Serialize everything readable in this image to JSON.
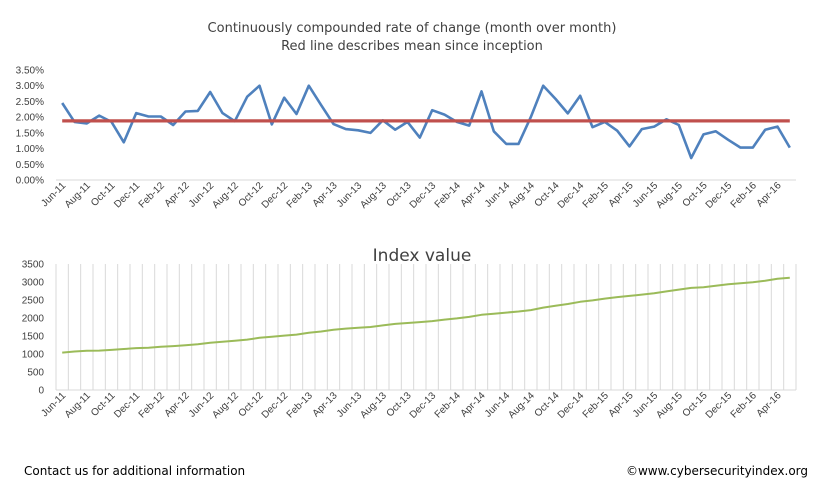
{
  "chart_data": [
    {
      "type": "line",
      "title": "Continuously compounded rate of change (month over month)",
      "subtitle": "Red line describes mean since inception",
      "xlabel": "",
      "ylabel": "",
      "ylim": [
        0,
        0.035
      ],
      "yticks": [
        "0.00%",
        "0.50%",
        "1.00%",
        "1.50%",
        "2.00%",
        "2.50%",
        "3.00%",
        "3.50%"
      ],
      "x": [
        "Jun-11",
        "Jul-11",
        "Aug-11",
        "Sep-11",
        "Oct-11",
        "Nov-11",
        "Dec-11",
        "Jan-12",
        "Feb-12",
        "Mar-12",
        "Apr-12",
        "May-12",
        "Jun-12",
        "Jul-12",
        "Aug-12",
        "Sep-12",
        "Oct-12",
        "Nov-12",
        "Dec-12",
        "Jan-13",
        "Feb-13",
        "Mar-13",
        "Apr-13",
        "May-13",
        "Jun-13",
        "Jul-13",
        "Aug-13",
        "Sep-13",
        "Oct-13",
        "Nov-13",
        "Dec-13",
        "Jan-14",
        "Feb-14",
        "Mar-14",
        "Apr-14",
        "May-14",
        "Jun-14",
        "Jul-14",
        "Aug-14",
        "Sep-14",
        "Oct-14",
        "Nov-14",
        "Dec-14",
        "Jan-15",
        "Feb-15",
        "Mar-15",
        "Apr-15",
        "May-15",
        "Jun-15",
        "Jul-15",
        "Aug-15",
        "Sep-15",
        "Oct-15",
        "Nov-15",
        "Dec-15",
        "Jan-16",
        "Feb-16",
        "Mar-16",
        "Apr-16",
        "May-16"
      ],
      "xtick_labels": [
        "Jun-11",
        "Aug-11",
        "Oct-11",
        "Dec-11",
        "Feb-12",
        "Apr-12",
        "Jun-12",
        "Aug-12",
        "Oct-12",
        "Dec-12",
        "Feb-13",
        "Apr-13",
        "Jun-13",
        "Aug-13",
        "Oct-13",
        "Dec-13",
        "Feb-14",
        "Apr-14",
        "Jun-14",
        "Aug-14",
        "Oct-14",
        "Dec-14",
        "Feb-15",
        "Apr-15",
        "Jun-15",
        "Aug-15",
        "Oct-15",
        "Dec-15",
        "Feb-16",
        "Apr-16"
      ],
      "series": [
        {
          "name": "Rate of change",
          "color": "#4f81bd",
          "values": [
            0.0245,
            0.0185,
            0.018,
            0.0205,
            0.0185,
            0.012,
            0.0213,
            0.0202,
            0.0202,
            0.0175,
            0.0218,
            0.022,
            0.028,
            0.0213,
            0.0187,
            0.0265,
            0.03,
            0.0177,
            0.0262,
            0.021,
            0.03,
            0.0238,
            0.0178,
            0.0162,
            0.0158,
            0.015,
            0.019,
            0.016,
            0.0185,
            0.0135,
            0.0222,
            0.0208,
            0.0185,
            0.0173,
            0.0282,
            0.0155,
            0.0115,
            0.0115,
            0.02,
            0.03,
            0.0258,
            0.0212,
            0.0268,
            0.0168,
            0.0185,
            0.0157,
            0.0107,
            0.0162,
            0.017,
            0.0193,
            0.0175,
            0.007,
            0.0145,
            0.0155,
            0.0128,
            0.0103,
            0.0103,
            0.016,
            0.017,
            0.0103
          ]
        },
        {
          "name": "Mean since inception",
          "color": "#c0504d",
          "values": [
            0.0188,
            0.0188,
            0.0188,
            0.0188,
            0.0188,
            0.0188,
            0.0188,
            0.0188,
            0.0188,
            0.0188,
            0.0188,
            0.0188,
            0.0188,
            0.0188,
            0.0188,
            0.0188,
            0.0188,
            0.0188,
            0.0188,
            0.0188,
            0.0188,
            0.0188,
            0.0188,
            0.0188,
            0.0188,
            0.0188,
            0.0188,
            0.0188,
            0.0188,
            0.0188,
            0.0188,
            0.0188,
            0.0188,
            0.0188,
            0.0188,
            0.0188,
            0.0188,
            0.0188,
            0.0188,
            0.0188,
            0.0188,
            0.0188,
            0.0188,
            0.0188,
            0.0188,
            0.0188,
            0.0188,
            0.0188,
            0.0188,
            0.0188,
            0.0188,
            0.0188,
            0.0188,
            0.0188,
            0.0188,
            0.0188,
            0.0188,
            0.0188,
            0.0188,
            0.0188
          ]
        }
      ],
      "grid": false,
      "legend": "none"
    },
    {
      "type": "line",
      "title": "Index value",
      "xlabel": "",
      "ylabel": "",
      "ylim": [
        0,
        3500
      ],
      "yticks": [
        "0",
        "500",
        "1000",
        "1500",
        "2000",
        "2500",
        "3000",
        "3500"
      ],
      "xtick_labels": [
        "Jun-11",
        "Aug-11",
        "Oct-11",
        "Dec-11",
        "Feb-12",
        "Apr-12",
        "Jun-12",
        "Aug-12",
        "Oct-12",
        "Dec-12",
        "Feb-13",
        "Apr-13",
        "Jun-13",
        "Aug-13",
        "Oct-13",
        "Dec-13",
        "Feb-14",
        "Apr-14",
        "Jun-14",
        "Aug-14",
        "Oct-14",
        "Dec-14",
        "Feb-15",
        "Apr-15",
        "Jun-15",
        "Aug-15",
        "Oct-15",
        "Dec-15",
        "Feb-16",
        "Apr-16"
      ],
      "series": [
        {
          "name": "Index value",
          "color": "#9bbb59",
          "values": [
            1040,
            1070,
            1090,
            1095,
            1115,
            1140,
            1165,
            1175,
            1200,
            1220,
            1245,
            1270,
            1315,
            1340,
            1370,
            1400,
            1450,
            1480,
            1510,
            1540,
            1590,
            1625,
            1675,
            1705,
            1730,
            1750,
            1795,
            1835,
            1860,
            1885,
            1915,
            1955,
            1990,
            2030,
            2090,
            2120,
            2150,
            2180,
            2220,
            2290,
            2340,
            2390,
            2450,
            2490,
            2540,
            2580,
            2615,
            2650,
            2690,
            2740,
            2790,
            2835,
            2855,
            2895,
            2935,
            2965,
            2995,
            3035,
            3090,
            3120
          ]
        }
      ],
      "grid": "vertical",
      "legend": "none"
    }
  ],
  "footer": {
    "contact": "Contact us for additional information",
    "copyright": "©www.cybersecurityindex.org"
  }
}
